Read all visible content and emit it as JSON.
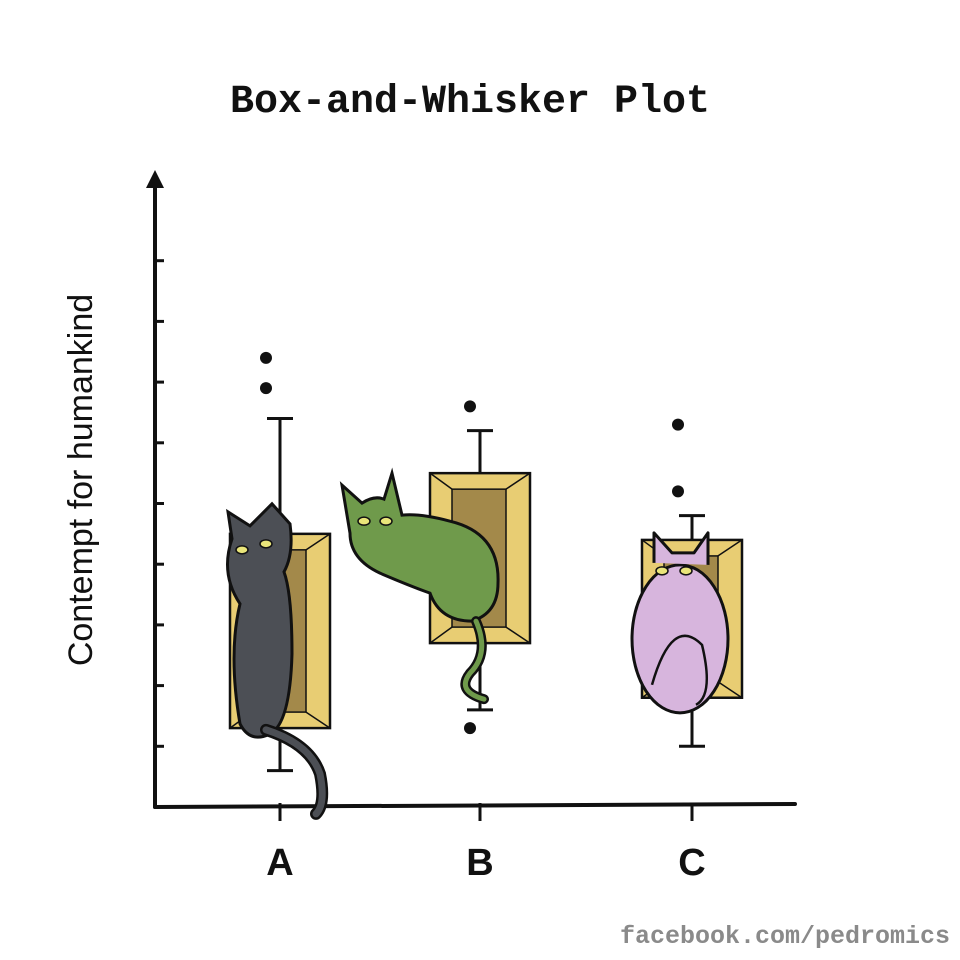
{
  "colors": {
    "ink": "#111111",
    "box_fill": "#e8cd73",
    "box_inner": "#a3894a",
    "cat_a": "#4c4f55",
    "cat_b": "#6f9a4b",
    "cat_c": "#d7b5dd",
    "eye": "#e9e57a"
  },
  "credit": "facebook.com/pedromics",
  "chart_data": {
    "type": "box",
    "title": "Box-and-Whisker Plot",
    "xlabel": "",
    "ylabel": "Contempt for humankind",
    "categories": [
      "A",
      "B",
      "C"
    ],
    "ylim": [
      0,
      10
    ],
    "yticks": [
      0,
      1,
      2,
      3,
      4,
      5,
      6,
      7,
      8,
      9
    ],
    "grid": false,
    "boxes": [
      {
        "category": "A",
        "whisker_low": 0.6,
        "q1": 1.3,
        "q3": 4.5,
        "whisker_high": 6.4,
        "outliers": [
          6.9,
          7.4
        ],
        "cat_icon": "grey-cat-icon"
      },
      {
        "category": "B",
        "whisker_low": 1.6,
        "q1": 2.7,
        "q3": 5.5,
        "whisker_high": 6.2,
        "outliers": [
          1.3,
          6.6
        ],
        "cat_icon": "green-cat-icon"
      },
      {
        "category": "C",
        "whisker_low": 1.0,
        "q1": 1.8,
        "q3": 4.4,
        "whisker_high": 4.8,
        "outliers": [
          5.2,
          6.3
        ],
        "cat_icon": "purple-cat-icon"
      }
    ]
  }
}
